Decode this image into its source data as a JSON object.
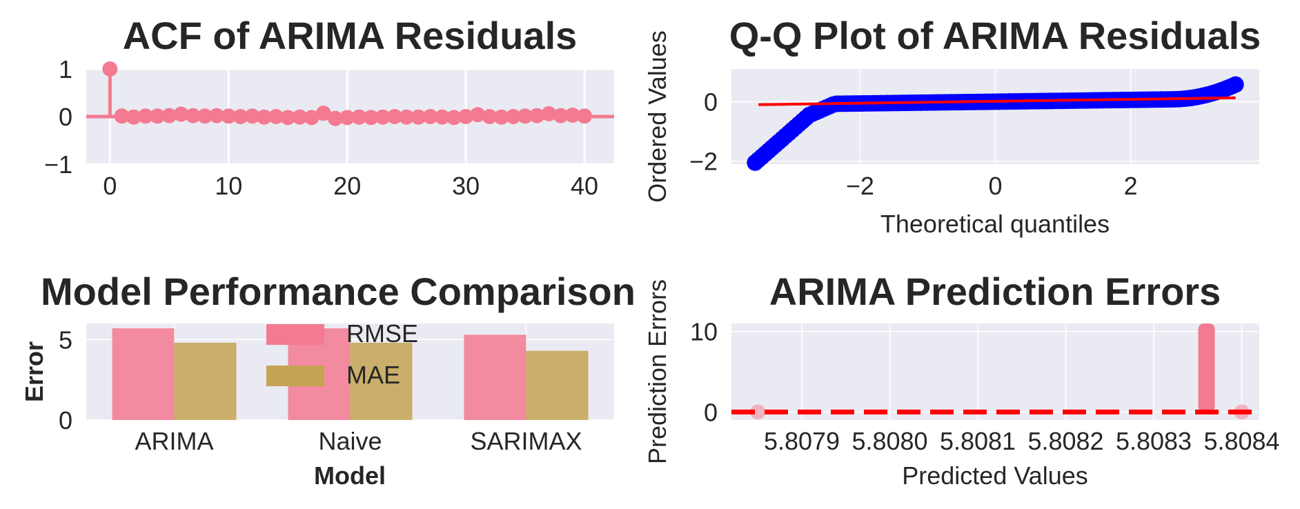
{
  "colors": {
    "axes_bg": "#eaeaf2",
    "grid": "#ffffff",
    "text": "#262626",
    "pink": "#f37a90",
    "olive": "#c4a352",
    "blue": "#0000ff",
    "red": "#ff0000"
  },
  "chart_data": [
    {
      "type": "stem",
      "title": "ACF of ARIMA Residuals",
      "xlabel": "",
      "ylabel": "",
      "xlim": [
        -2,
        42.5
      ],
      "ylim": [
        -1,
        1
      ],
      "xticks": [
        "0",
        "10",
        "20",
        "30",
        "40"
      ],
      "yticks": [
        "1",
        "0",
        "−1"
      ],
      "lags": [
        0,
        1,
        2,
        3,
        4,
        5,
        6,
        7,
        8,
        9,
        10,
        11,
        12,
        13,
        14,
        15,
        16,
        17,
        18,
        19,
        20,
        21,
        22,
        23,
        24,
        25,
        26,
        27,
        28,
        29,
        30,
        31,
        32,
        33,
        34,
        35,
        36,
        37,
        38,
        39,
        40
      ],
      "values": [
        1.0,
        0.01,
        -0.01,
        0.01,
        0.01,
        0.02,
        0.05,
        0.02,
        0.01,
        0.02,
        0.01,
        0.0,
        0.01,
        -0.01,
        0.0,
        -0.02,
        -0.01,
        -0.02,
        0.07,
        -0.04,
        -0.02,
        -0.01,
        -0.02,
        -0.01,
        0.0,
        -0.01,
        -0.01,
        0.0,
        -0.01,
        -0.02,
        0.0,
        0.04,
        0.0,
        -0.01,
        0.0,
        0.01,
        0.02,
        0.06,
        0.02,
        0.03,
        0.01
      ],
      "grid": true
    },
    {
      "type": "scatter",
      "title": "Q-Q Plot of ARIMA Residuals",
      "xlabel": "Theoretical quantiles",
      "ylabel": "Ordered Values",
      "xlim": [
        -3.9,
        3.9
      ],
      "ylim": [
        -2.1,
        1.1
      ],
      "xticks": [
        "−2",
        "0",
        "2"
      ],
      "yticks": [
        "0",
        "−2"
      ],
      "fit_line": {
        "x": [
          -3.5,
          3.55
        ],
        "y": [
          -0.1,
          0.13
        ]
      },
      "grid": true
    },
    {
      "type": "bar",
      "title": "Model Performance Comparison",
      "xlabel": "Model",
      "ylabel": "Error",
      "categories": [
        "ARIMA",
        "Naive",
        "SARIMAX"
      ],
      "series": [
        {
          "name": "RMSE",
          "values": [
            5.7,
            5.7,
            5.3
          ]
        },
        {
          "name": "MAE",
          "values": [
            4.8,
            4.8,
            4.3
          ]
        }
      ],
      "ylim": [
        0,
        6
      ],
      "yticks": [
        "5",
        "0"
      ],
      "legend": "top-center",
      "grid": true
    },
    {
      "type": "scatter",
      "title": "ARIMA Prediction Errors",
      "xlabel": "Predicted Values",
      "ylabel": "Prediction Errors",
      "xlim": [
        5.80782,
        5.80842
      ],
      "ylim": [
        -1,
        11
      ],
      "xticks": [
        "5.8079",
        "5.8080",
        "5.8081",
        "5.8082",
        "5.8083",
        "5.8084"
      ],
      "yticks": [
        "10",
        "0"
      ],
      "points": [
        {
          "x": 5.80785,
          "y": 0
        },
        {
          "x": 5.8084,
          "y": 0
        }
      ],
      "spike": {
        "x": 5.80836,
        "y_from": 0,
        "y_to": 11
      },
      "zero_line": 0,
      "grid": true
    }
  ]
}
